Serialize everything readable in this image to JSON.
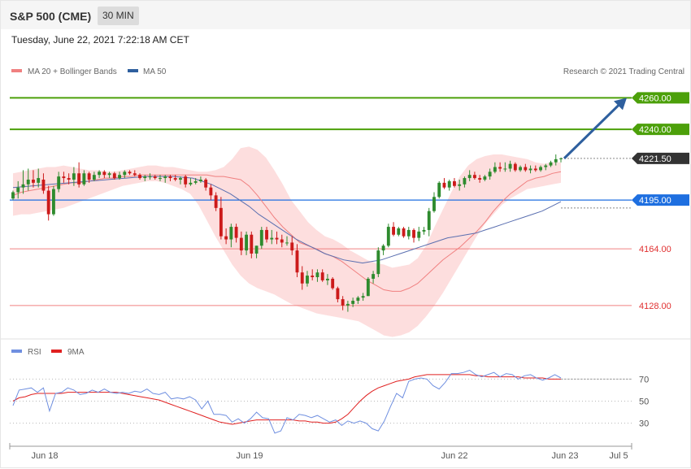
{
  "header": {
    "title": "S&P 500 (CME)",
    "interval": "30 MIN"
  },
  "datetime": "Tuesday, June 22, 2021 7:22:18 AM CET",
  "legend": {
    "ma20_label": "MA 20 + Bollinger Bands",
    "ma50_label": "MA 50",
    "credit": "Research © 2021 Trading Central"
  },
  "rsi_legend": {
    "rsi_label": "RSI",
    "ma_label": "9MA"
  },
  "colors": {
    "bull": "#2e8b2e",
    "bear": "#cc1a1a",
    "bollinger": "#fdd8d8",
    "ma20": "#f08080",
    "ma50": "#5a6fb0",
    "resistance": "#4ca00a",
    "pivot": "#1e6fe0",
    "support": "#f08080",
    "arrow": "#2e5f9e",
    "rsi": "#6f8fe0",
    "rsi_ma": "#e02020",
    "last_price": "#333333"
  },
  "chart_data": [
    {
      "type": "candlestick",
      "title": "",
      "y_levels": [
        {
          "value": 4260.0,
          "label": "4260.00",
          "kind": "resistance"
        },
        {
          "value": 4240.0,
          "label": "4240.00",
          "kind": "resistance"
        },
        {
          "value": 4221.5,
          "label": "4221.50",
          "kind": "last"
        },
        {
          "value": 4195.0,
          "label": "4195.00",
          "kind": "pivot"
        },
        {
          "value": 4164.0,
          "label": "4164.00",
          "kind": "support"
        },
        {
          "value": 4128.0,
          "label": "4128.00",
          "kind": "support"
        }
      ],
      "ylim": [
        4115,
        4270
      ],
      "x_ticks": [
        "Jun 18",
        "Jun 19",
        "Jun 22",
        "Jun 23",
        "Jul 5"
      ],
      "candles": [
        [
          4196,
          4201,
          4195,
          4200
        ],
        [
          4200,
          4207,
          4196,
          4203
        ],
        [
          4203,
          4214,
          4199,
          4205
        ],
        [
          4205,
          4215,
          4201,
          4208
        ],
        [
          4208,
          4214,
          4203,
          4206
        ],
        [
          4206,
          4215,
          4203,
          4209
        ],
        [
          4208,
          4212,
          4199,
          4201
        ],
        [
          4201,
          4204,
          4182,
          4186
        ],
        [
          4186,
          4204,
          4185,
          4202
        ],
        [
          4202,
          4213,
          4200,
          4210
        ],
        [
          4210,
          4213,
          4206,
          4209
        ],
        [
          4209,
          4212,
          4205,
          4208
        ],
        [
          4208,
          4216,
          4204,
          4212
        ],
        [
          4212,
          4219,
          4203,
          4205
        ],
        [
          4205,
          4214,
          4204,
          4212
        ],
        [
          4212,
          4213,
          4206,
          4208
        ],
        [
          4208,
          4213,
          4207,
          4211
        ],
        [
          4211,
          4214,
          4209,
          4213
        ],
        [
          4213,
          4214,
          4209,
          4211
        ],
        [
          4211,
          4213,
          4209,
          4212
        ],
        [
          4212,
          4213,
          4208,
          4209
        ],
        [
          4209,
          4213,
          4208,
          4211
        ],
        [
          4211,
          4214,
          4209,
          4213
        ],
        [
          4213,
          4214,
          4211,
          4212
        ],
        [
          4212,
          4214,
          4210,
          4211
        ],
        [
          4211,
          4212,
          4208,
          4209
        ],
        [
          4209,
          4211,
          4207,
          4210
        ],
        [
          4210,
          4212,
          4208,
          4210
        ],
        [
          4210,
          4211,
          4208,
          4209
        ],
        [
          4209,
          4211,
          4207,
          4209
        ],
        [
          4209,
          4211,
          4206,
          4210
        ],
        [
          4210,
          4211,
          4207,
          4209
        ],
        [
          4209,
          4211,
          4207,
          4208
        ],
        [
          4208,
          4210,
          4205,
          4209
        ],
        [
          4210,
          4211,
          4203,
          4205
        ],
        [
          4205,
          4209,
          4204,
          4206
        ],
        [
          4206,
          4209,
          4205,
          4207
        ],
        [
          4207,
          4210,
          4206,
          4208
        ],
        [
          4208,
          4209,
          4201,
          4203
        ],
        [
          4203,
          4205,
          4195,
          4198
        ],
        [
          4198,
          4200,
          4188,
          4190
        ],
        [
          4190,
          4197,
          4170,
          4172
        ],
        [
          4172,
          4177,
          4167,
          4170
        ],
        [
          4170,
          4180,
          4165,
          4178
        ],
        [
          4178,
          4180,
          4168,
          4171
        ],
        [
          4171,
          4175,
          4160,
          4163
        ],
        [
          4163,
          4175,
          4160,
          4173
        ],
        [
          4173,
          4175,
          4158,
          4161
        ],
        [
          4161,
          4166,
          4158,
          4166
        ],
        [
          4166,
          4178,
          4164,
          4176
        ],
        [
          4176,
          4178,
          4168,
          4170
        ],
        [
          4170,
          4176,
          4167,
          4171
        ],
        [
          4171,
          4175,
          4167,
          4170
        ],
        [
          4170,
          4173,
          4165,
          4168
        ],
        [
          4168,
          4172,
          4166,
          4168
        ],
        [
          4168,
          4172,
          4160,
          4163
        ],
        [
          4163,
          4167,
          4146,
          4149
        ],
        [
          4149,
          4153,
          4138,
          4142
        ],
        [
          4142,
          4150,
          4140,
          4147
        ],
        [
          4147,
          4151,
          4144,
          4146
        ],
        [
          4146,
          4151,
          4143,
          4149
        ],
        [
          4149,
          4151,
          4143,
          4144
        ],
        [
          4144,
          4148,
          4141,
          4145
        ],
        [
          4145,
          4146,
          4138,
          4139
        ],
        [
          4139,
          4140,
          4130,
          4132
        ],
        [
          4132,
          4134,
          4125,
          4128
        ],
        [
          4128,
          4131,
          4124,
          4129
        ],
        [
          4129,
          4133,
          4127,
          4131
        ],
        [
          4131,
          4134,
          4129,
          4133
        ],
        [
          4133,
          4136,
          4131,
          4134
        ],
        [
          4134,
          4146,
          4134,
          4145
        ],
        [
          4145,
          4150,
          4142,
          4148
        ],
        [
          4148,
          4165,
          4146,
          4163
        ],
        [
          4163,
          4167,
          4160,
          4166
        ],
        [
          4166,
          4180,
          4165,
          4178
        ],
        [
          4178,
          4181,
          4172,
          4173
        ],
        [
          4173,
          4178,
          4172,
          4177
        ],
        [
          4177,
          4178,
          4171,
          4172
        ],
        [
          4172,
          4178,
          4170,
          4176
        ],
        [
          4176,
          4177,
          4168,
          4171
        ],
        [
          4171,
          4178,
          4169,
          4175
        ],
        [
          4175,
          4178,
          4173,
          4176
        ],
        [
          4176,
          4190,
          4172,
          4188
        ],
        [
          4188,
          4200,
          4187,
          4197
        ],
        [
          4197,
          4207,
          4196,
          4206
        ],
        [
          4206,
          4209,
          4202,
          4203
        ],
        [
          4203,
          4208,
          4201,
          4207
        ],
        [
          4207,
          4209,
          4203,
          4204
        ],
        [
          4204,
          4208,
          4201,
          4205
        ],
        [
          4205,
          4210,
          4203,
          4209
        ],
        [
          4209,
          4214,
          4207,
          4211
        ],
        [
          4211,
          4213,
          4208,
          4209
        ],
        [
          4209,
          4211,
          4206,
          4208
        ],
        [
          4208,
          4211,
          4207,
          4210
        ],
        [
          4210,
          4215,
          4208,
          4213
        ],
        [
          4213,
          4219,
          4212,
          4216
        ],
        [
          4216,
          4219,
          4213,
          4215
        ],
        [
          4215,
          4219,
          4213,
          4215
        ],
        [
          4215,
          4220,
          4213,
          4218
        ],
        [
          4218,
          4219,
          4213,
          4214
        ],
        [
          4214,
          4217,
          4213,
          4216
        ],
        [
          4216,
          4218,
          4213,
          4214
        ],
        [
          4214,
          4217,
          4212,
          4215
        ],
        [
          4215,
          4217,
          4213,
          4214
        ],
        [
          4214,
          4217,
          4213,
          4216
        ],
        [
          4216,
          4218,
          4214,
          4217
        ],
        [
          4217,
          4220,
          4216,
          4219
        ],
        [
          4219,
          4224,
          4217,
          4221
        ],
        [
          4221,
          4222,
          4219,
          4221.5
        ]
      ],
      "ma20": [
        4198,
        4200,
        4201,
        4202,
        4203,
        4204,
        4205,
        4206,
        4206,
        4207,
        4208,
        4209,
        4209,
        4210,
        4210,
        4211,
        4211,
        4211,
        4211,
        4211,
        4211,
        4211,
        4211,
        4211,
        4210,
        4210,
        4209,
        4208,
        4204,
        4198,
        4191,
        4184,
        4178,
        4173,
        4168,
        4166,
        4164,
        4161,
        4159,
        4156,
        4152,
        4148,
        4144,
        4141,
        4138,
        4137,
        4137,
        4139,
        4142,
        4147,
        4152,
        4157,
        4161,
        4165,
        4170,
        4175,
        4181,
        4188,
        4194,
        4199,
        4203,
        4207,
        4209,
        4210,
        4212,
        4213
      ],
      "bb_upper": [
        4212,
        4213,
        4214,
        4215,
        4216,
        4216,
        4217,
        4216,
        4215,
        4214,
        4214,
        4213,
        4213,
        4214,
        4215,
        4216,
        4217,
        4217,
        4216,
        4216,
        4215,
        4214,
        4213,
        4213,
        4214,
        4216,
        4221,
        4228,
        4229,
        4227,
        4222,
        4214,
        4205,
        4195,
        4188,
        4181,
        4176,
        4172,
        4170,
        4167,
        4163,
        4160,
        4157,
        4155,
        4154,
        4152,
        4153,
        4154,
        4158,
        4166,
        4178,
        4189,
        4200,
        4210,
        4217,
        4221,
        4223,
        4224,
        4224,
        4223,
        4222,
        4221,
        4219,
        4218,
        4219,
        4219
      ],
      "bb_lower": [
        4185,
        4186,
        4186,
        4187,
        4188,
        4189,
        4190,
        4192,
        4194,
        4196,
        4198,
        4200,
        4202,
        4204,
        4205,
        4206,
        4207,
        4207,
        4206,
        4204,
        4202,
        4199,
        4192,
        4182,
        4172,
        4163,
        4154,
        4147,
        4142,
        4139,
        4137,
        4135,
        4132,
        4129,
        4127,
        4125,
        4123,
        4122,
        4121,
        4120,
        4119,
        4118,
        4115,
        4112,
        4109,
        4108,
        4109,
        4111,
        4115,
        4121,
        4128,
        4136,
        4145,
        4154,
        4163,
        4172,
        4180,
        4186,
        4192,
        4196,
        4199,
        4202,
        4203,
        4204,
        4205,
        4206
      ],
      "ma50": [
        4203,
        4203.5,
        4204,
        4204.5,
        4205,
        4205.5,
        4206,
        4206.5,
        4207,
        4207.5,
        4208,
        4208.5,
        4209,
        4209.5,
        4210,
        4210,
        4210,
        4210,
        4209.5,
        4209,
        4207,
        4205,
        4202,
        4199,
        4195,
        4191,
        4186,
        4182,
        4178,
        4174,
        4170,
        4167,
        4164,
        4161,
        4159,
        4157,
        4156,
        4155,
        4156,
        4157,
        4159,
        4161,
        4163,
        4165,
        4167,
        4169,
        4171,
        4172,
        4173,
        4174,
        4176,
        4178,
        4180,
        4182,
        4184,
        4186,
        4188,
        4191,
        4194
      ],
      "forecast_target": 4260.0
    },
    {
      "type": "line",
      "title": "",
      "ylim": [
        15,
        85
      ],
      "y_ticks": [
        70,
        50,
        30
      ],
      "series": [
        {
          "name": "RSI",
          "values": [
            46,
            60,
            61,
            62,
            58,
            62,
            41,
            57,
            58,
            62,
            60,
            56,
            57,
            60,
            58,
            61,
            58,
            57,
            58,
            57,
            59,
            58,
            61,
            57,
            56,
            58,
            52,
            53,
            52,
            54,
            51,
            43,
            50,
            38,
            38,
            37,
            31,
            34,
            30,
            34,
            40,
            35,
            34,
            21,
            23,
            35,
            33,
            38,
            37,
            35,
            37,
            34,
            31,
            33,
            28,
            32,
            30,
            32,
            30,
            25,
            23,
            32,
            45,
            57,
            53,
            68,
            70,
            71,
            70,
            64,
            61,
            67,
            75,
            75,
            76,
            78,
            74,
            72,
            74,
            76,
            72,
            75,
            74,
            70,
            73,
            74,
            71,
            69,
            71,
            74,
            71
          ]
        },
        {
          "name": "9MA",
          "values": [
            50,
            53,
            54,
            56,
            57,
            57,
            57,
            57,
            57,
            58,
            58,
            58,
            58,
            58,
            58,
            58,
            58,
            58,
            57,
            56,
            55,
            54,
            53,
            52,
            51,
            49,
            47,
            45,
            43,
            41,
            39,
            37,
            35,
            33,
            31,
            30,
            29,
            30,
            31,
            32,
            33,
            33,
            33,
            33,
            33,
            33,
            33,
            32,
            32,
            31,
            31,
            30,
            30,
            31,
            34,
            38,
            44,
            50,
            55,
            59,
            62,
            64,
            66,
            68,
            69,
            70,
            72,
            73,
            74,
            74,
            74,
            74,
            74,
            74,
            74,
            74,
            73,
            73,
            72,
            72,
            72,
            72,
            72,
            72,
            71,
            71,
            71,
            71,
            70,
            70,
            70
          ]
        }
      ]
    }
  ]
}
